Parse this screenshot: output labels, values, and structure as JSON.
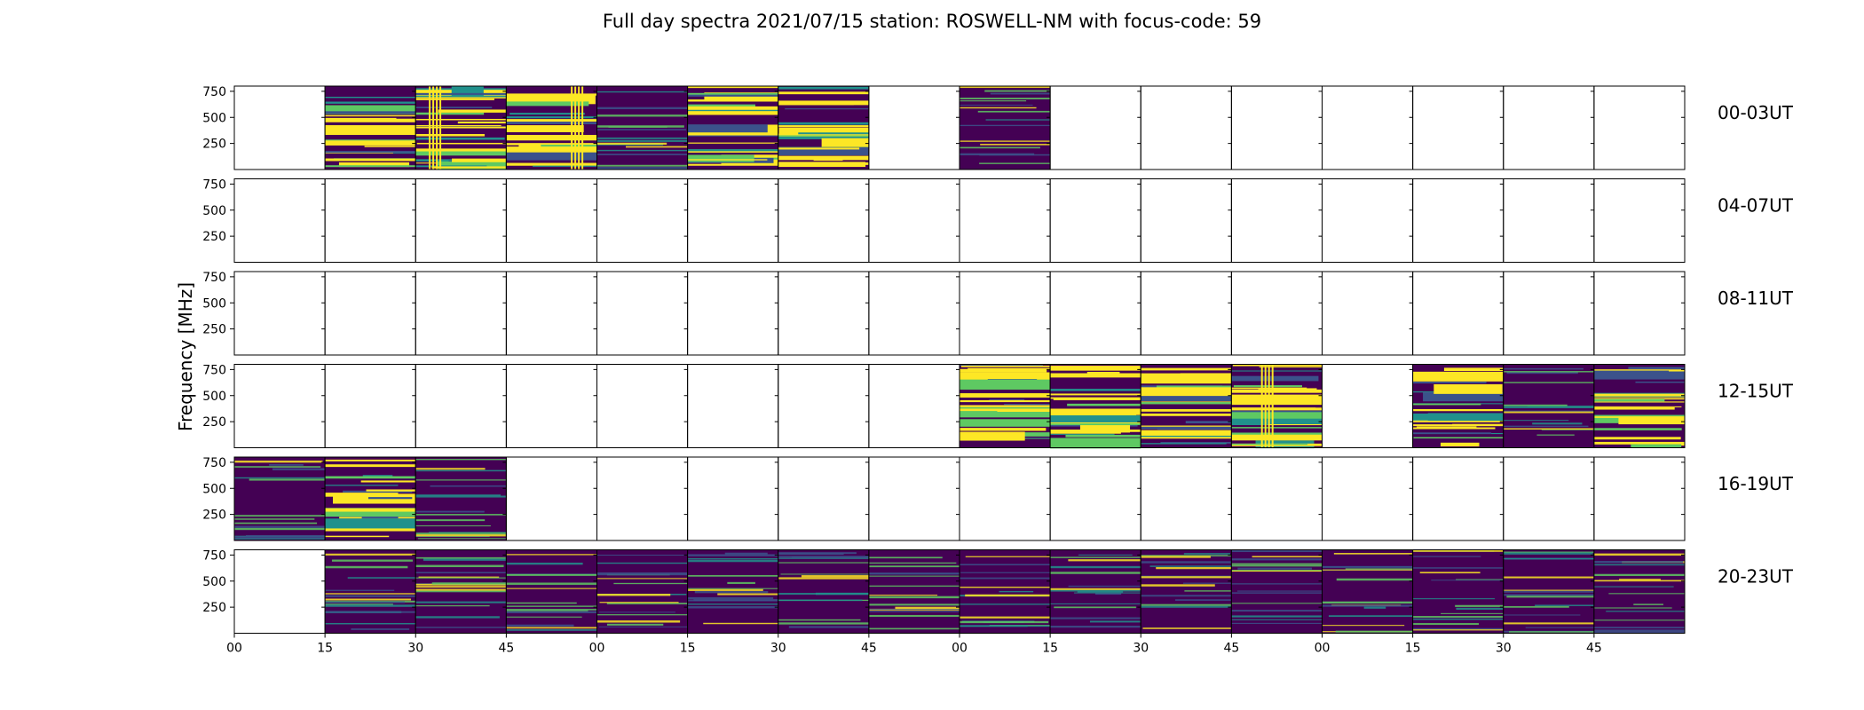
{
  "chart_data": {
    "type": "heatmap",
    "title": "Full day spectra 2021/07/15 station: ROSWELL-NM with focus-code: 59",
    "ylabel": "Frequency [MHz]",
    "y_ticks": [
      "750",
      "500",
      "250"
    ],
    "ylim": [
      0,
      800
    ],
    "x_ticks": [
      "00",
      "15",
      "30",
      "45",
      "00",
      "15",
      "30",
      "45",
      "00",
      "15",
      "30",
      "45",
      "00",
      "15",
      "30",
      "45"
    ],
    "colormap": [
      "#440154",
      "#3b528b",
      "#21918c",
      "#5ec962",
      "#fde725"
    ],
    "rows": [
      {
        "label": "00-03UT",
        "panels": [
          0,
          2,
          2,
          2,
          1,
          2,
          2,
          0,
          1,
          0,
          0,
          0,
          0,
          0,
          0,
          0
        ]
      },
      {
        "label": "04-07UT",
        "panels": [
          0,
          0,
          0,
          0,
          0,
          0,
          0,
          0,
          0,
          0,
          0,
          0,
          0,
          0,
          0,
          0
        ]
      },
      {
        "label": "08-11UT",
        "panels": [
          0,
          0,
          0,
          0,
          0,
          0,
          0,
          0,
          0,
          0,
          0,
          0,
          0,
          0,
          0,
          0
        ]
      },
      {
        "label": "12-15UT",
        "panels": [
          0,
          0,
          0,
          0,
          0,
          0,
          0,
          0,
          2,
          2,
          2,
          2,
          0,
          2,
          1,
          2
        ]
      },
      {
        "label": "16-19UT",
        "panels": [
          1,
          2,
          1,
          0,
          0,
          0,
          0,
          0,
          0,
          0,
          0,
          0,
          0,
          0,
          0,
          0
        ]
      },
      {
        "label": "20-23UT",
        "panels": [
          0,
          1,
          1,
          1,
          1,
          1,
          1,
          1,
          1,
          1,
          1,
          1,
          1,
          1,
          1,
          1
        ]
      }
    ]
  }
}
